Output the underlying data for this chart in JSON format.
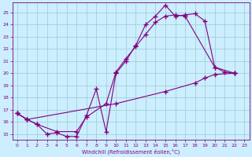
{
  "xlabel": "Windchill (Refroidissement éolien,°C)",
  "bg_color": "#cceeff",
  "line_color": "#800080",
  "grid_color": "#99cccc",
  "xlim": [
    -0.5,
    23.5
  ],
  "ylim": [
    14.5,
    25.8
  ],
  "yticks": [
    15,
    16,
    17,
    18,
    19,
    20,
    21,
    22,
    23,
    24,
    25
  ],
  "xticks": [
    0,
    1,
    2,
    3,
    4,
    5,
    6,
    7,
    8,
    9,
    10,
    11,
    12,
    13,
    14,
    15,
    16,
    17,
    18,
    19,
    20,
    21,
    22,
    23
  ],
  "curve1": [
    [
      0,
      16.7
    ],
    [
      1,
      16.2
    ],
    [
      2,
      15.8
    ],
    [
      3,
      15.0
    ],
    [
      4,
      15.1
    ],
    [
      5,
      14.8
    ],
    [
      6,
      14.8
    ],
    [
      7,
      16.5
    ],
    [
      8,
      18.7
    ],
    [
      9,
      15.2
    ],
    [
      10,
      20.0
    ],
    [
      11,
      21.0
    ],
    [
      12,
      22.3
    ],
    [
      13,
      24.0
    ],
    [
      14,
      24.7
    ],
    [
      15,
      25.6
    ],
    [
      16,
      24.7
    ],
    [
      17,
      24.8
    ],
    [
      18,
      24.9
    ],
    [
      19,
      24.3
    ],
    [
      20,
      20.5
    ],
    [
      21,
      20.1
    ],
    [
      22,
      20.0
    ]
  ],
  "curve2": [
    [
      0,
      16.7
    ],
    [
      1,
      16.2
    ],
    [
      2,
      15.8
    ],
    [
      4,
      15.2
    ],
    [
      6,
      15.2
    ],
    [
      7,
      16.4
    ],
    [
      9,
      17.5
    ],
    [
      10,
      20.1
    ],
    [
      11,
      21.2
    ],
    [
      12,
      22.2
    ],
    [
      13,
      23.2
    ],
    [
      14,
      24.2
    ],
    [
      15,
      24.7
    ],
    [
      16,
      24.8
    ],
    [
      17,
      24.7
    ],
    [
      20,
      20.5
    ],
    [
      22,
      20.0
    ]
  ],
  "curve3": [
    [
      0,
      16.7
    ],
    [
      1,
      16.2
    ],
    [
      10,
      17.5
    ],
    [
      15,
      18.5
    ],
    [
      18,
      19.2
    ],
    [
      19,
      19.6
    ],
    [
      20,
      19.9
    ],
    [
      22,
      20.0
    ]
  ]
}
